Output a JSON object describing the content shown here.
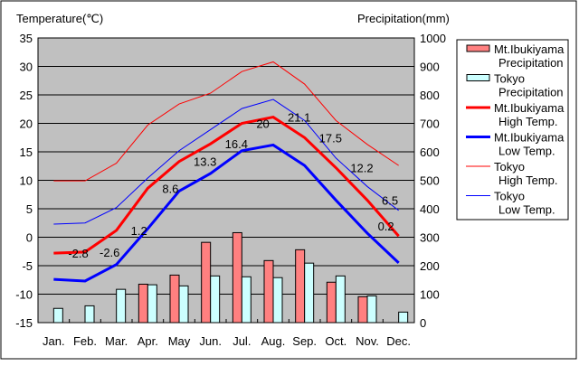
{
  "chart_data": {
    "type": "bar+line",
    "ylabel_left": "Temperature(℃)",
    "ylabel_right": "Precipitation(mm)",
    "ylim_left": [
      -15,
      35
    ],
    "ylim_right": [
      0,
      1000
    ],
    "yticks_left": [
      "35",
      "30",
      "25",
      "20",
      "15",
      "10",
      "5",
      "0",
      "-5",
      "-10",
      "-15"
    ],
    "yticks_right": [
      "1000",
      "900",
      "800",
      "700",
      "600",
      "500",
      "400",
      "300",
      "200",
      "100",
      "0"
    ],
    "categories": [
      "Jan.",
      "Feb.",
      "Mar.",
      "Apr.",
      "May",
      "Jun.",
      "Jul.",
      "Aug.",
      "Sep.",
      "Oct.",
      "Nov.",
      "Dec."
    ],
    "bars": [
      {
        "name": "Mt.Ibukiyama Precipitation",
        "label1": "Mt.Ibukiyama",
        "label2": "Precipitation",
        "color": "#ff8080",
        "values": [
          0,
          0,
          0,
          135,
          167,
          282,
          316,
          218,
          256,
          142,
          91,
          0
        ]
      },
      {
        "name": "Tokyo Precipitation",
        "label1": "Tokyo",
        "label2": "Precipitation",
        "color": "#ccffff",
        "values": [
          50,
          59,
          117,
          133,
          129,
          164,
          161,
          158,
          209,
          164,
          94,
          37
        ]
      }
    ],
    "lines": [
      {
        "name": "Mt.Ibukiyama High Temp.",
        "label1": "Mt.Ibukiyama",
        "label2": "High Temp.",
        "color": "#ff0000",
        "width": 3,
        "values": [
          -2.8,
          -2.6,
          1.2,
          8.6,
          13.3,
          16.4,
          20,
          21.1,
          17.5,
          12.2,
          6.5,
          0.2
        ],
        "labels": [
          "-2.8",
          "-2.6",
          "1.2",
          "8.6",
          "13.3",
          "16.4",
          "20",
          "21.1",
          "17.5",
          "12.2",
          "6.5",
          "0.2"
        ]
      },
      {
        "name": "Mt.Ibukiyama Low Temp.",
        "label1": "Mt.Ibukiyama",
        "label2": "Low Temp.",
        "color": "#0000ff",
        "width": 3,
        "values": [
          -7.4,
          -7.7,
          -4.8,
          1.5,
          8.1,
          11.2,
          15.2,
          16.2,
          12.6,
          6.5,
          0.7,
          -4.5
        ]
      },
      {
        "name": "Tokyo High Temp.",
        "label1": "Tokyo",
        "label2": "High Temp.",
        "color": "#ff0000",
        "width": 1,
        "values": [
          9.9,
          9.9,
          13.0,
          19.7,
          23.4,
          25.3,
          29.1,
          30.8,
          26.9,
          20.5,
          16.3,
          12.6
        ]
      },
      {
        "name": "Tokyo Low Temp.",
        "label1": "Tokyo",
        "label2": "Low Temp.",
        "color": "#0000ff",
        "width": 1,
        "values": [
          2.3,
          2.5,
          5.2,
          10.4,
          15.2,
          18.9,
          22.6,
          24.2,
          20.5,
          13.9,
          8.9,
          4.7
        ]
      }
    ],
    "grid": true,
    "legend": "right"
  }
}
